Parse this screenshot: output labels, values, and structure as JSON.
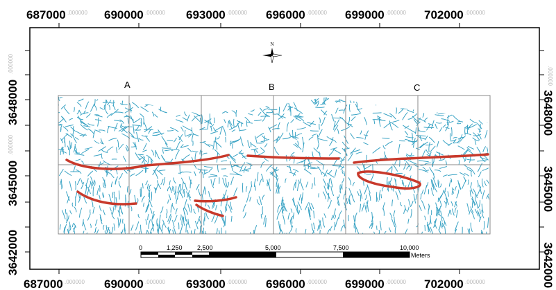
{
  "map": {
    "x_ticks": [
      {
        "main": "687000",
        "suffix": ".000000"
      },
      {
        "main": "690000",
        "suffix": ".000000"
      },
      {
        "main": "693000",
        "suffix": ".000000"
      },
      {
        "main": "696000",
        "suffix": ".000000"
      },
      {
        "main": "699000",
        "suffix": ".000000"
      },
      {
        "main": "702000",
        "suffix": ".000000"
      }
    ],
    "y_ticks": [
      {
        "main": "3648000",
        "suffix": ".000000"
      },
      {
        "main": "3645000",
        "suffix": ".000000"
      },
      {
        "main": "3642000",
        "suffix": ".000000"
      }
    ],
    "sections": [
      "A",
      "B",
      "C"
    ],
    "north_label": "N",
    "scale_bar": {
      "labels": [
        "0",
        "1,250",
        "2,500",
        "5,000",
        "7,500",
        "10,000"
      ],
      "unit": "Meters"
    },
    "colors": {
      "drainage": "#3aa3c4",
      "lineament": "#c8392b",
      "tile_border": "#888888",
      "frame": "#000000"
    }
  }
}
